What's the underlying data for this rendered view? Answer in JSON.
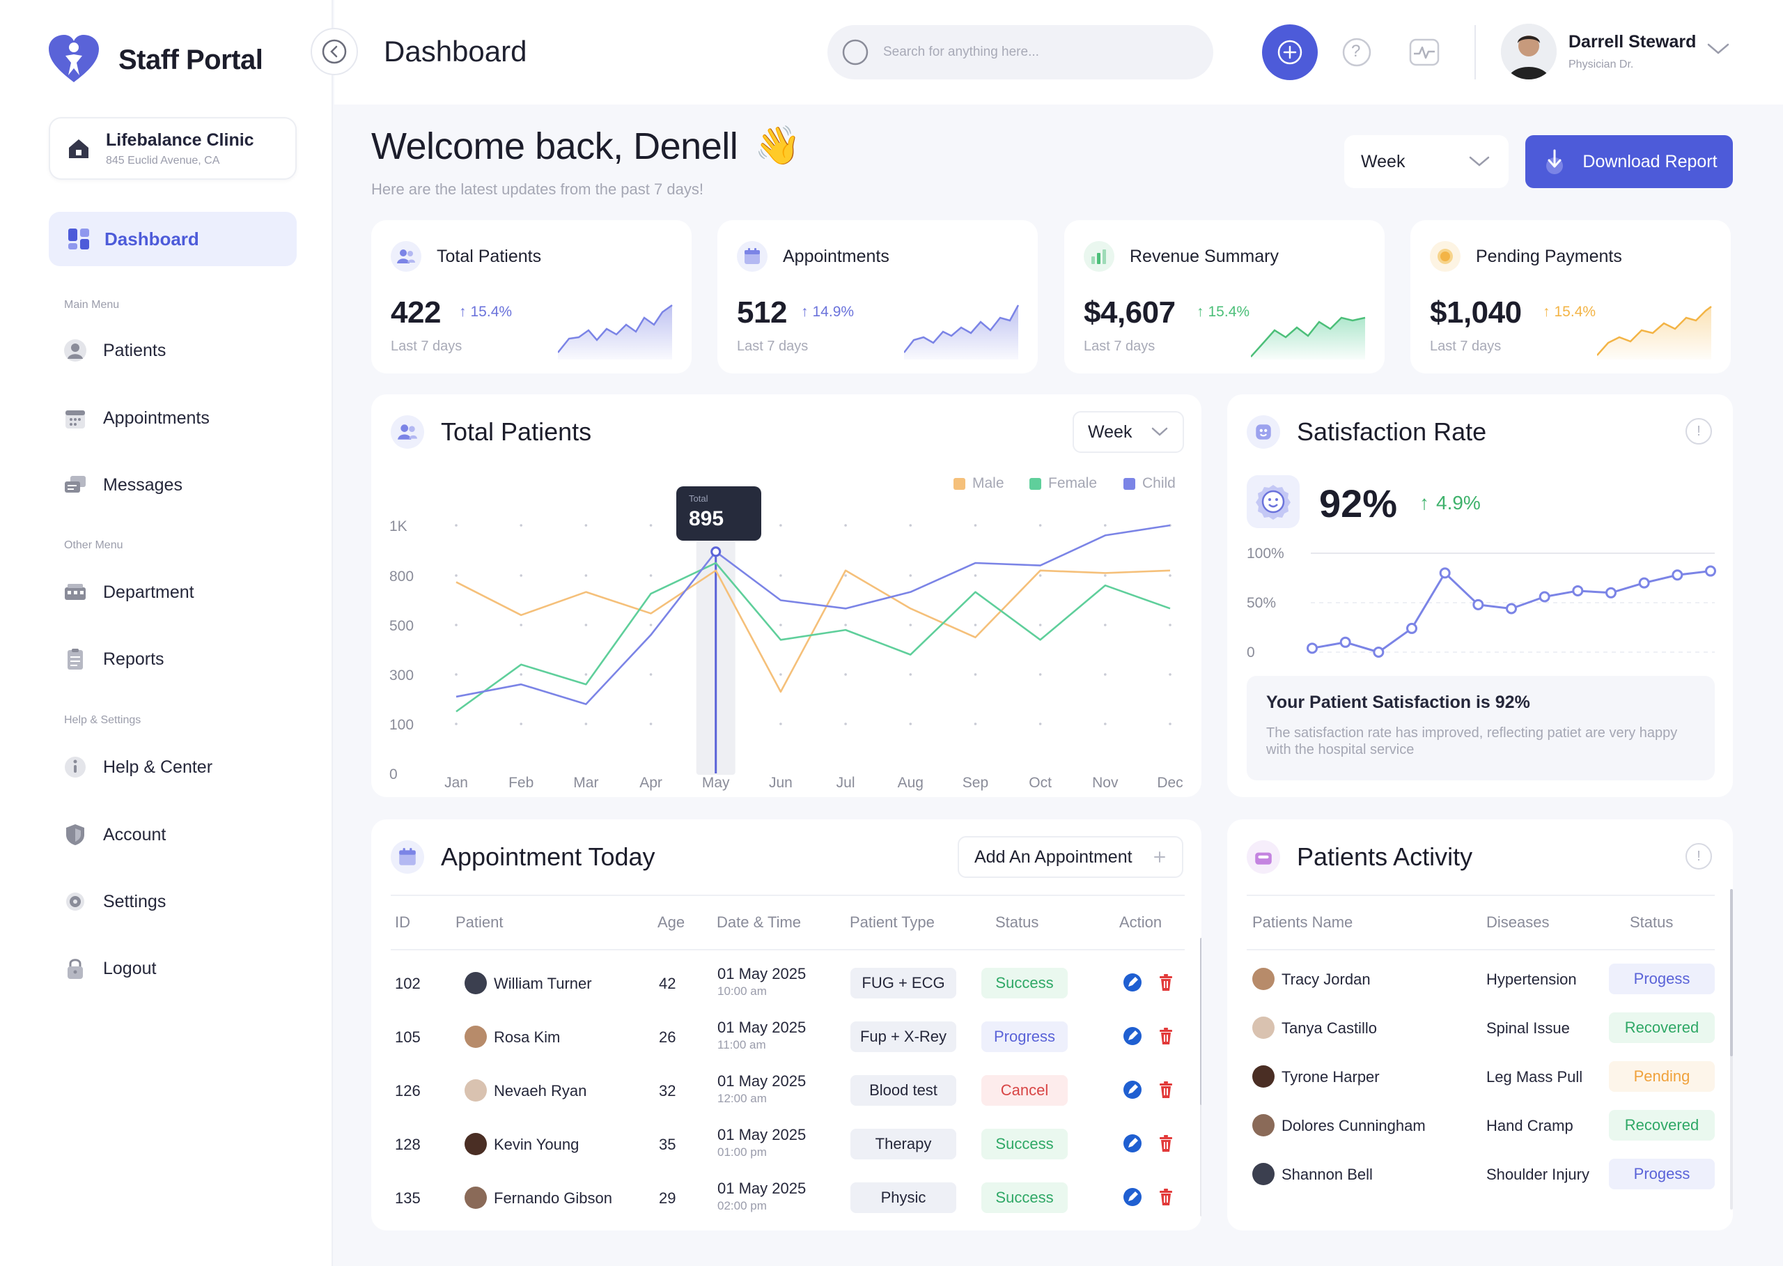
{
  "brand": {
    "name": "Staff Portal"
  },
  "clinic": {
    "name": "Lifebalance Clinic",
    "address": "845 Euclid Avenue, CA"
  },
  "sidebar": {
    "active": "Dashboard",
    "main_menu_label": "Main Menu",
    "main_menu": [
      "Patients",
      "Appointments",
      "Messages"
    ],
    "other_menu_label": "Other Menu",
    "other_menu": [
      "Department",
      "Reports"
    ],
    "help_label": "Help & Settings",
    "help_menu": [
      "Help & Center",
      "Account",
      "Settings",
      "Logout"
    ]
  },
  "header": {
    "title": "Dashboard",
    "search_placeholder": "Search for anything here...",
    "help_glyph": "?",
    "user": {
      "name": "Darrell Steward",
      "role": "Physician Dr."
    }
  },
  "welcome": {
    "title": "Welcome back, Denell",
    "emoji": "👋",
    "subtitle": "Here are the latest updates from the past 7 days!",
    "period_select": "Week",
    "download_label": "Download Report"
  },
  "stats": [
    {
      "title": "Total Patients",
      "value": "422",
      "change": "15.4%",
      "period": "Last 7 days",
      "color": "#7b7fd6"
    },
    {
      "title": "Appointments",
      "value": "512",
      "change": "14.9%",
      "period": "Last 7 days",
      "color": "#7b7fd6"
    },
    {
      "title": "Revenue Summary",
      "value": "$4,607",
      "change": "15.4%",
      "period": "Last 7 days",
      "color": "#4cbf79"
    },
    {
      "title": "Pending Payments",
      "value": "$1,040",
      "change": "15.4%",
      "period": "Last 7 days",
      "color": "#f3b446"
    }
  ],
  "patients_chart": {
    "title": "Total Patients",
    "period": "Week",
    "tooltip": {
      "label": "Total",
      "value": "895"
    }
  },
  "chart_data": [
    {
      "type": "line",
      "title": "Total Patients",
      "categories": [
        "Jan",
        "Feb",
        "Mar",
        "Apr",
        "May",
        "Jun",
        "Jul",
        "Aug",
        "Sep",
        "Oct",
        "Nov",
        "Dec"
      ],
      "y_ticks": [
        "1K",
        "800",
        "500",
        "300",
        "100",
        "0"
      ],
      "series": [
        {
          "name": "Male",
          "color": "#f5c07a",
          "values": [
            760,
            560,
            700,
            570,
            820,
            230,
            820,
            600,
            450,
            820,
            810,
            820
          ]
        },
        {
          "name": "Female",
          "color": "#5fcf9b",
          "values": [
            150,
            340,
            260,
            690,
            850,
            440,
            480,
            380,
            700,
            440,
            740,
            600
          ]
        },
        {
          "name": "Child",
          "color": "#7b84e6",
          "values": [
            210,
            260,
            180,
            460,
            895,
            650,
            600,
            700,
            850,
            840,
            960,
            1000
          ]
        }
      ],
      "highlight": {
        "category": "May",
        "series": "Child",
        "value": 895
      }
    },
    {
      "type": "line",
      "title": "Satisfaction Rate",
      "y_ticks": [
        "100%",
        "50%",
        "0"
      ],
      "series": [
        {
          "name": "Satisfaction",
          "color": "#7b84e6",
          "values": [
            4,
            10,
            0,
            24,
            80,
            48,
            44,
            56,
            62,
            60,
            70,
            78,
            82
          ]
        }
      ]
    }
  ],
  "satisfaction": {
    "title": "Satisfaction Rate",
    "value": "92%",
    "change": "4.9%",
    "note_title": "Your Patient Satisfaction is 92%",
    "note_body": "The satisfaction rate has improved, reflecting patiet are very happy with the hospital service"
  },
  "appointments": {
    "title": "Appointment Today",
    "add_label": "Add An Appointment",
    "columns": [
      "ID",
      "Patient",
      "Age",
      "Date & Time",
      "Patient Type",
      "Status",
      "Action"
    ],
    "rows": [
      {
        "id": "102",
        "name": "William Turner",
        "age": "42",
        "date": "01 May 2025",
        "time": "10:00 am",
        "type": "FUG + ECG",
        "status": "Success"
      },
      {
        "id": "105",
        "name": "Rosa Kim",
        "age": "26",
        "date": "01 May 2025",
        "time": "11:00 am",
        "type": "Fup + X-Rey",
        "status": "Progress"
      },
      {
        "id": "126",
        "name": "Nevaeh Ryan",
        "age": "32",
        "date": "01 May 2025",
        "time": "12:00 am",
        "type": "Blood test",
        "status": "Cancel"
      },
      {
        "id": "128",
        "name": "Kevin Young",
        "age": "35",
        "date": "01 May 2025",
        "time": "01:00 pm",
        "type": "Therapy",
        "status": "Success"
      },
      {
        "id": "135",
        "name": "Fernando Gibson",
        "age": "29",
        "date": "01 May 2025",
        "time": "02:00 pm",
        "type": "Physic",
        "status": "Success"
      }
    ]
  },
  "activity": {
    "title": "Patients Activity",
    "columns": [
      "Patients Name",
      "Diseases",
      "Status"
    ],
    "rows": [
      {
        "name": "Tracy Jordan",
        "disease": "Hypertension",
        "status": "Progess"
      },
      {
        "name": "Tanya Castillo",
        "disease": "Spinal Issue",
        "status": "Recovered"
      },
      {
        "name": "Tyrone Harper",
        "disease": "Leg Mass Pull",
        "status": "Pending"
      },
      {
        "name": "Dolores Cunningham",
        "disease": "Hand Cramp",
        "status": "Recovered"
      },
      {
        "name": "Shannon Bell",
        "disease": "Shoulder Injury",
        "status": "Progess"
      }
    ]
  },
  "colors": {
    "accent": "#4d5bd9",
    "success": "#2fa866",
    "progress": "#5a63d8",
    "cancel": "#d84545",
    "pending": "#f0a23c"
  }
}
